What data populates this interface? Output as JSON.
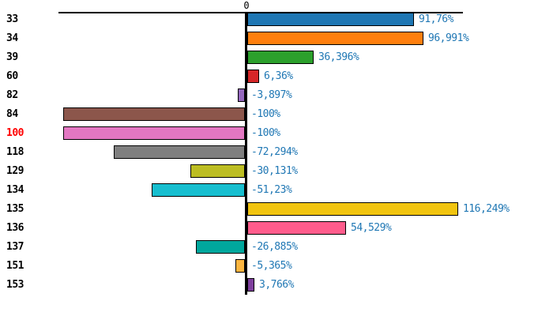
{
  "chart_data": {
    "type": "bar",
    "orientation": "horizontal",
    "categories": [
      "33",
      "34",
      "39",
      "60",
      "82",
      "84",
      "100",
      "118",
      "129",
      "134",
      "135",
      "136",
      "137",
      "151",
      "153"
    ],
    "values": [
      91.76,
      96.991,
      36.396,
      6.36,
      -3.897,
      -100,
      -100,
      -72.294,
      -30.131,
      -51.23,
      116.249,
      54.529,
      -26.885,
      -5.365,
      3.766
    ],
    "value_labels": [
      "91,76%",
      "96,991%",
      "36,396%",
      "6,36%",
      "-3,897%",
      "-100%",
      "-100%",
      "-72,294%",
      "-30,131%",
      "-51,23%",
      "116,249%",
      "54,529%",
      "-26,885%",
      "-5,365%",
      "3,766%"
    ],
    "bar_colors": [
      "#1f77b4",
      "#ff7f0e",
      "#2ca02c",
      "#d62728",
      "#9467bd",
      "#8c564b",
      "#e377c2",
      "#7f7f7f",
      "#bcbd22",
      "#17becf",
      "#f1c40f",
      "#ff5c8c",
      "#00a79d",
      "#fbb540",
      "#7e3f9d"
    ],
    "highlighted_categories": [
      "100"
    ],
    "colors": {
      "highlight": "#ff0000",
      "category_label": "#000000",
      "value_label": "#1f77b4",
      "axis": "#000000",
      "background": "#ffffff"
    },
    "axis": {
      "zero_tick_label": "0",
      "xlim": [
        -104,
        119
      ],
      "grid": false,
      "legend": false
    }
  }
}
